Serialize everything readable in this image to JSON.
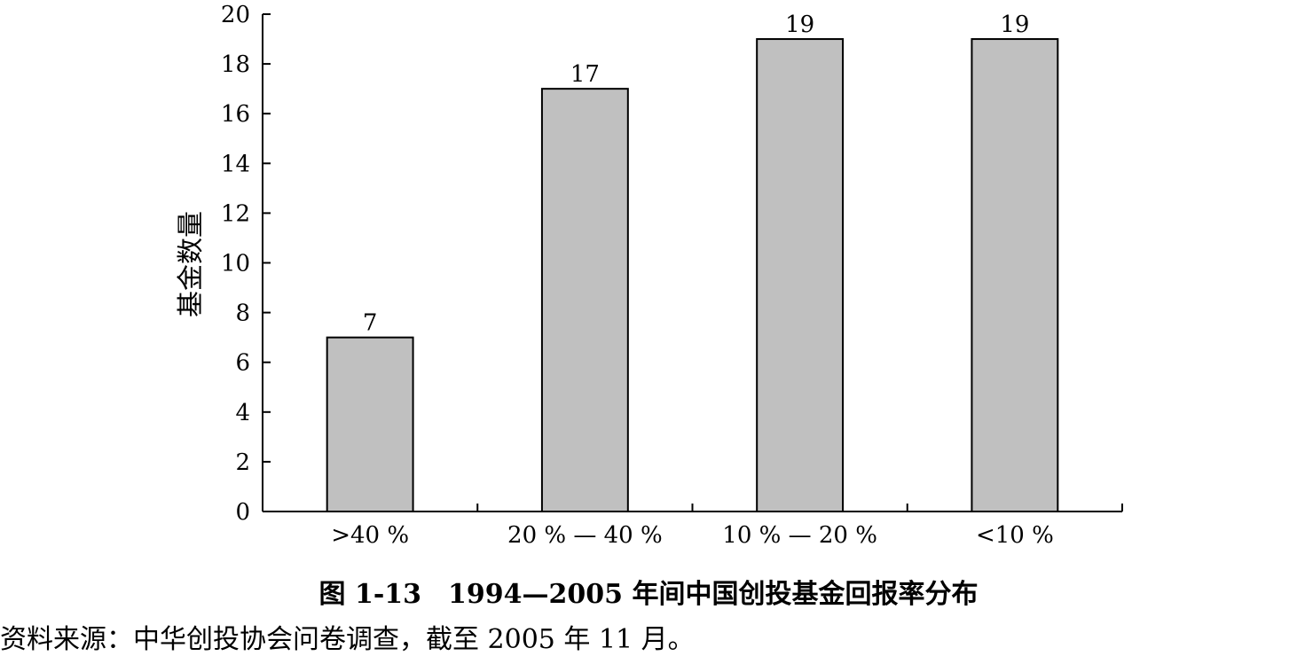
{
  "chart_data": {
    "type": "bar",
    "categories": [
      ">40 %",
      "20 % — 40 %",
      "10 % — 20 %",
      "<10 %"
    ],
    "values": [
      7,
      17,
      19,
      19
    ],
    "data_labels": [
      "7",
      "17",
      "19",
      "19"
    ],
    "ylabel": "基金数量",
    "xlabel": "",
    "ylim": [
      0,
      20
    ],
    "yticks": [
      0,
      2,
      4,
      6,
      8,
      10,
      12,
      14,
      16,
      18,
      20
    ],
    "ytick_labels": [
      "0",
      "2",
      "4",
      "6",
      "8",
      "10",
      "12",
      "14",
      "16",
      "18",
      "20"
    ],
    "grid": false,
    "bar_color": "#c0c0c0",
    "bar_edge_color": "#000000"
  },
  "caption": "图 1-13　1994—2005 年间中国创投基金回报率分布",
  "source": "资料来源：中华创投协会问卷调查，截至 2005 年 11 月。"
}
